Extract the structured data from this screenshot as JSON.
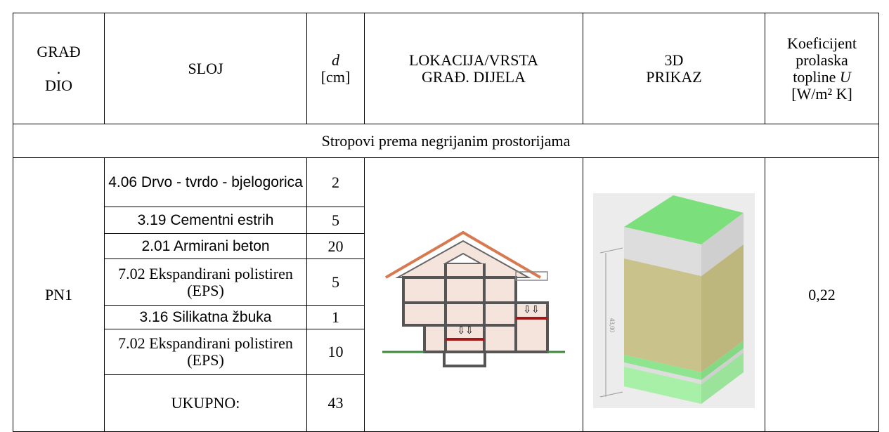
{
  "header": {
    "col1": [
      "GRAĐ",
      ".",
      "DIO"
    ],
    "col2": "SLOJ",
    "col3": {
      "symbol": "d",
      "unit": "[cm]"
    },
    "col4": [
      "LOKACIJA/VRSTA",
      "GRAĐ. DIJELA"
    ],
    "col5": [
      "3D",
      "PRIKAZ"
    ],
    "col6": {
      "text": [
        "Koeficijent",
        "prolaska",
        "topline"
      ],
      "symbol": "U",
      "unit": "[W/m² K]"
    }
  },
  "section": "Stropovi prema negrijanim prostorijama",
  "element": {
    "id": "PN1",
    "layers": [
      {
        "name": "4.06 Drvo - tvrdo - bjelogorica",
        "d": 2
      },
      {
        "name": "3.19 Cementni estrih",
        "d": 5
      },
      {
        "name": "2.01 Armirani beton",
        "d": 20
      },
      {
        "name": "7.02 Ekspandirani polistiren (EPS)",
        "d": 5
      },
      {
        "name": "3.16 Silikatna žbuka",
        "d": 1
      },
      {
        "name": "7.02 Ekspandirani polistiren (EPS)",
        "d": 10
      }
    ],
    "total_label": "UKUPNO:",
    "total": 43,
    "prikaz_label": "43,00",
    "u": "0,22"
  }
}
